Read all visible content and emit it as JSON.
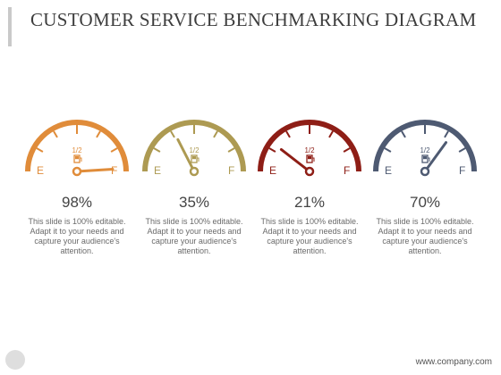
{
  "title": "CUSTOMER SERVICE BENCHMARKING DIAGRAM",
  "gauges": [
    {
      "label_empty": "E",
      "label_full": "F",
      "label_half": "1/2",
      "value": 98,
      "value_text": "98%",
      "description": "This slide is 100% editable. Adapt it to your needs and capture your audience's attention.",
      "color": "#e08c3a"
    },
    {
      "label_empty": "E",
      "label_full": "F",
      "label_half": "1/2",
      "value": 35,
      "value_text": "35%",
      "description": "This slide is 100% editable. Adapt it to your needs and capture your audience's attention.",
      "color": "#ad9a52"
    },
    {
      "label_empty": "E",
      "label_full": "F",
      "label_half": "1/2",
      "value": 21,
      "value_text": "21%",
      "description": "This slide is 100% editable. Adapt it to your needs and capture your audience's attention.",
      "color": "#8e1e16"
    },
    {
      "label_empty": "E",
      "label_full": "F",
      "label_half": "1/2",
      "value": 70,
      "value_text": "70%",
      "description": "This slide is 100% editable. Adapt it to your needs and capture your audience's attention.",
      "color": "#4e5a72"
    }
  ],
  "footer": {
    "url": "www.company.com"
  }
}
